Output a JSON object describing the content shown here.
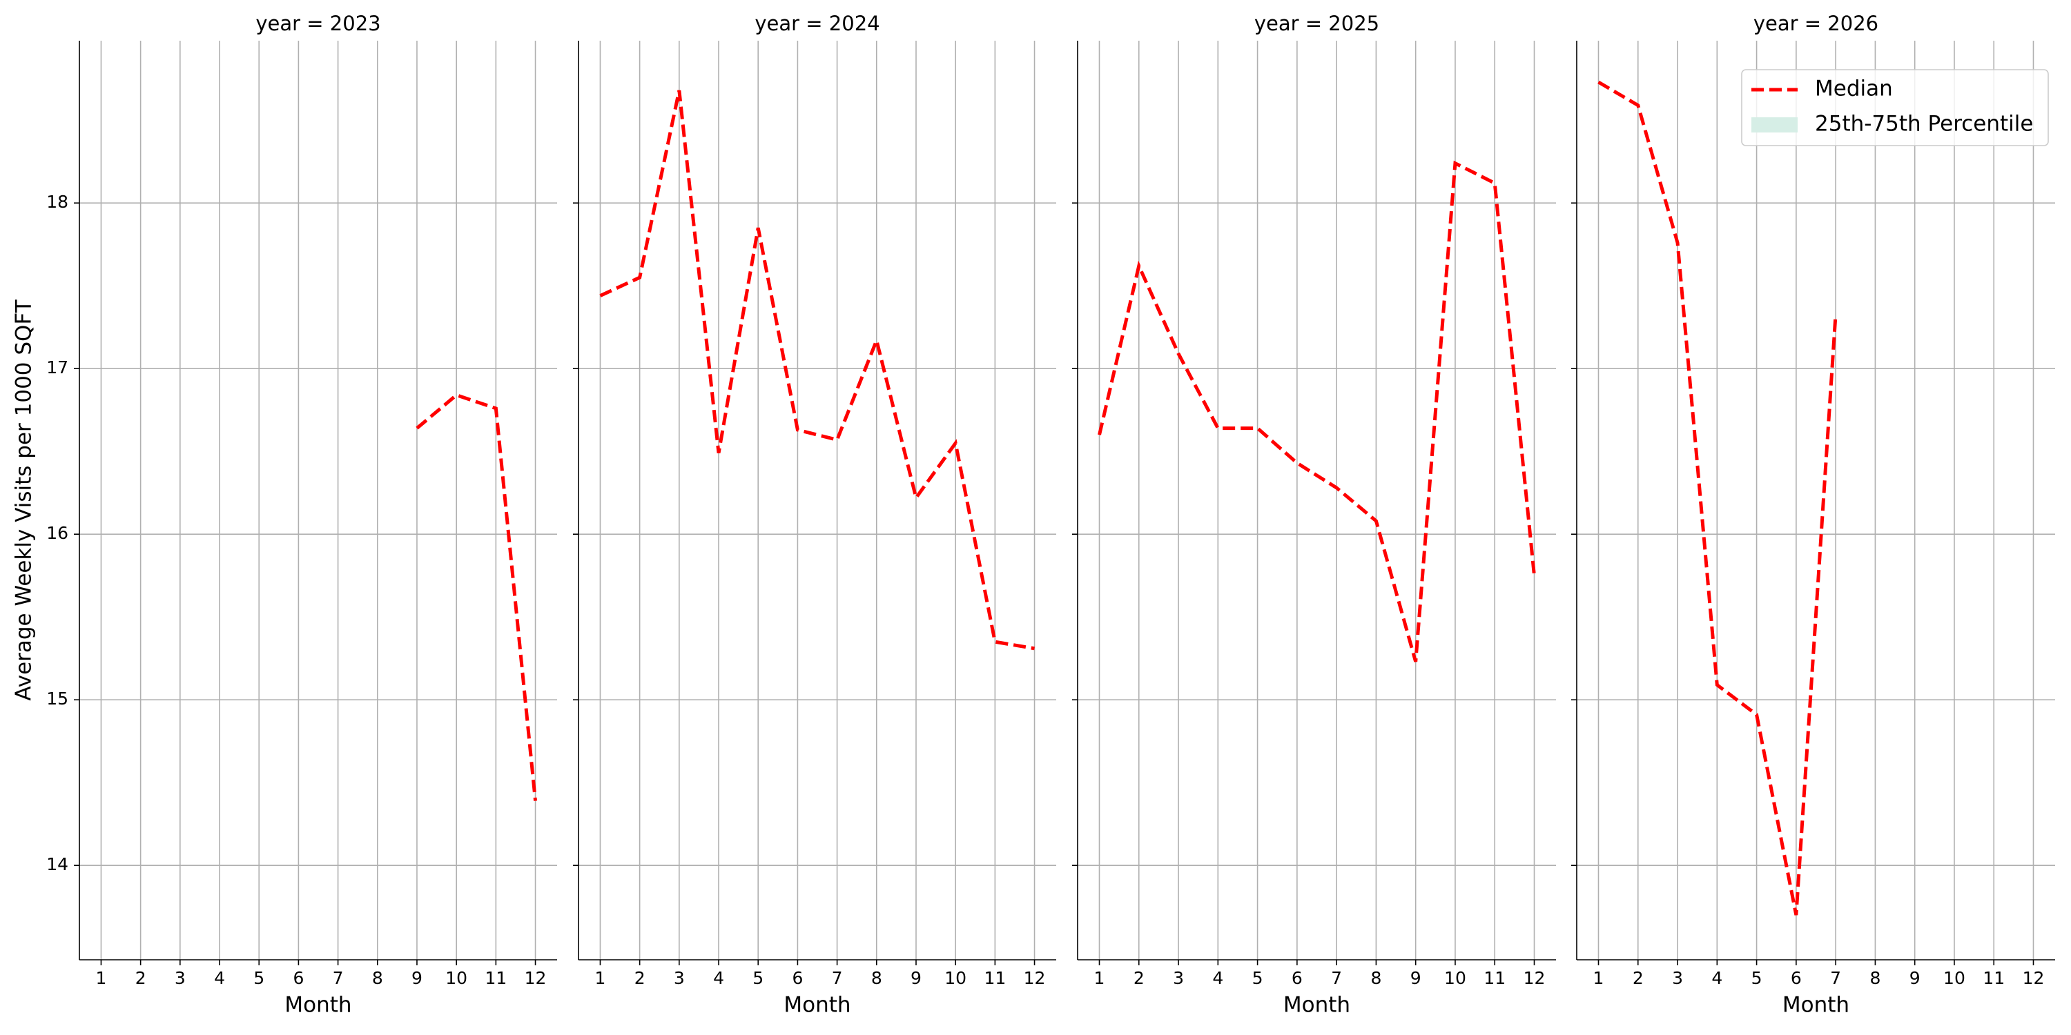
{
  "chart_data": [
    {
      "type": "line",
      "title": "year = 2023",
      "xlabel": "Month",
      "ylabel": "Average Weekly Visits per 1000 SQFT",
      "x": [
        1,
        2,
        3,
        4,
        5,
        6,
        7,
        8,
        9,
        10,
        11,
        12
      ],
      "xticks": [
        1,
        2,
        3,
        4,
        5,
        6,
        7,
        8,
        9,
        10,
        11,
        12
      ],
      "xlim": [
        0.45,
        12.55
      ],
      "ylim": [
        13.43,
        18.98
      ],
      "yticks": [
        14,
        15,
        16,
        17,
        18
      ],
      "grid": true,
      "color": "#ff0000",
      "linestyle": "dashed",
      "values": [
        null,
        null,
        null,
        null,
        null,
        null,
        null,
        null,
        16.64,
        16.84,
        16.76,
        14.39
      ]
    },
    {
      "type": "line",
      "title": "year = 2024",
      "xlabel": "Month",
      "x": [
        1,
        2,
        3,
        4,
        5,
        6,
        7,
        8,
        9,
        10,
        11,
        12
      ],
      "xticks": [
        1,
        2,
        3,
        4,
        5,
        6,
        7,
        8,
        9,
        10,
        11,
        12
      ],
      "xlim": [
        0.45,
        12.55
      ],
      "ylim": [
        13.43,
        18.98
      ],
      "grid": true,
      "color": "#ff0000",
      "linestyle": "dashed",
      "values": [
        17.44,
        17.55,
        18.68,
        16.49,
        17.85,
        16.63,
        16.57,
        17.17,
        16.22,
        16.55,
        15.35,
        15.31
      ]
    },
    {
      "type": "line",
      "title": "year = 2025",
      "xlabel": "Month",
      "x": [
        1,
        2,
        3,
        4,
        5,
        6,
        7,
        8,
        9,
        10,
        11,
        12
      ],
      "xticks": [
        1,
        2,
        3,
        4,
        5,
        6,
        7,
        8,
        9,
        10,
        11,
        12
      ],
      "xlim": [
        0.45,
        12.55
      ],
      "ylim": [
        13.43,
        18.98
      ],
      "grid": true,
      "color": "#ff0000",
      "linestyle": "dashed",
      "values": [
        16.6,
        17.62,
        17.09,
        16.64,
        16.64,
        16.43,
        16.28,
        16.08,
        15.23,
        18.24,
        18.12,
        15.75
      ]
    },
    {
      "type": "line",
      "title": "year = 2026",
      "xlabel": "Month",
      "x": [
        1,
        2,
        3,
        4,
        5,
        6,
        7,
        8,
        9,
        10,
        11,
        12
      ],
      "xticks": [
        1,
        2,
        3,
        4,
        5,
        6,
        7,
        8,
        9,
        10,
        11,
        12
      ],
      "xlim": [
        0.45,
        12.55
      ],
      "ylim": [
        13.43,
        18.98
      ],
      "grid": true,
      "color": "#ff0000",
      "linestyle": "dashed",
      "values": [
        18.73,
        18.59,
        17.76,
        15.09,
        14.91,
        13.7,
        17.33,
        null,
        null,
        null,
        null,
        null
      ],
      "legend": {
        "loc": "upper right",
        "entries": [
          {
            "name": "Median",
            "color": "#ff0000",
            "style": "dashed-line"
          },
          {
            "name": "25th-75th Percentile",
            "color": "#d6eee6",
            "style": "patch"
          }
        ]
      }
    }
  ]
}
